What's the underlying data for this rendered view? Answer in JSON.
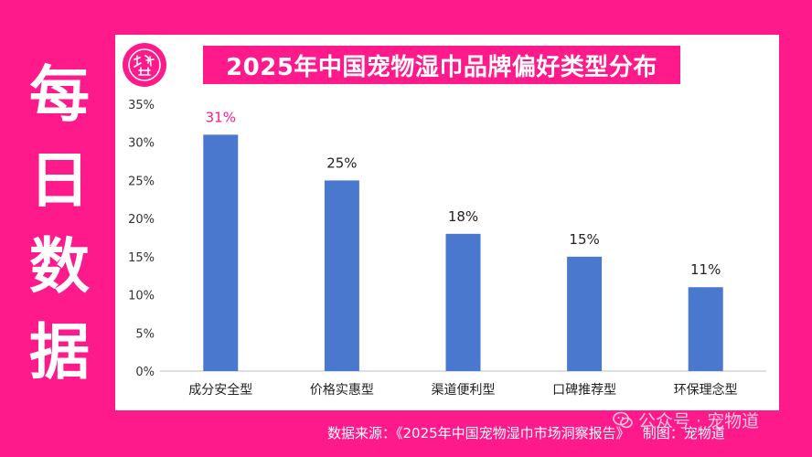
{
  "side_title": [
    "每",
    "日",
    "数",
    "据"
  ],
  "colors": {
    "background": "#ff1a8c",
    "bar": "#4a78cf",
    "highlight_label": "#ff1a8c",
    "panel": "#ffffff"
  },
  "logo": {
    "icon": "brand-seal-icon",
    "text": "宠物道"
  },
  "footer": {
    "source": "数据来源：《2025年中国宠物湿巾市场洞察报告》",
    "credit": "制图：宠物道"
  },
  "watermark": {
    "icon": "wechat-icon",
    "text": "公众号 · 宠物道"
  },
  "chart_data": {
    "type": "bar",
    "title": "2025年中国宠物湿巾品牌偏好类型分布",
    "categories": [
      "成分安全型",
      "价格实惠型",
      "渠道便利型",
      "口碑推荐型",
      "环保理念型"
    ],
    "values": [
      31,
      25,
      18,
      15,
      11
    ],
    "value_labels": [
      "31%",
      "25%",
      "18%",
      "15%",
      "11%"
    ],
    "highlight_index": 0,
    "y_ticks": [
      0,
      5,
      10,
      15,
      20,
      25,
      30,
      35
    ],
    "y_tick_labels": [
      "0%",
      "5%",
      "10%",
      "15%",
      "20%",
      "25%",
      "30%",
      "35%"
    ],
    "ylim": [
      0,
      35
    ],
    "grid": false,
    "legend": "none",
    "xlabel": "",
    "ylabel": ""
  }
}
